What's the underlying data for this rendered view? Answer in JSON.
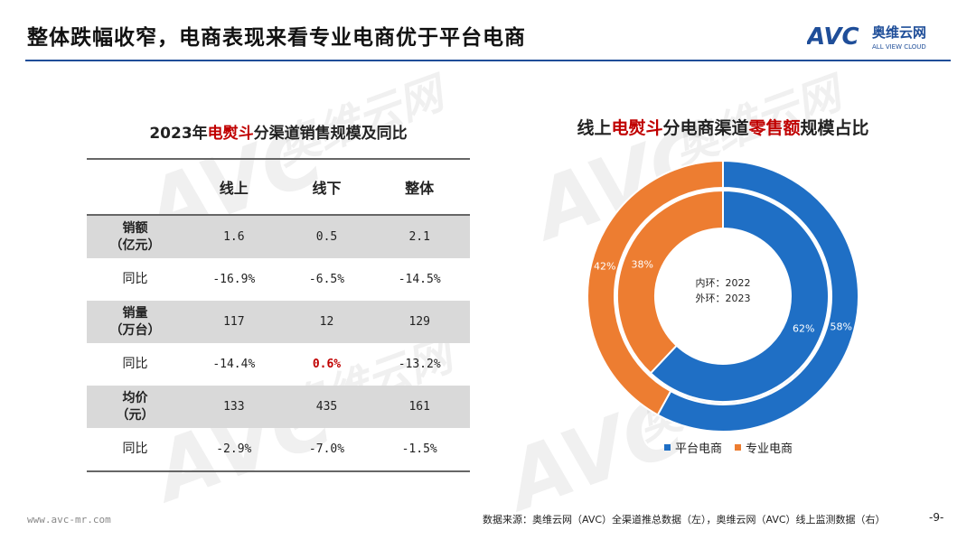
{
  "header": {
    "title": "整体跌幅收窄，电商表现来看专业电商优于平台电商"
  },
  "logo": {
    "mark": "AVC",
    "cn": "奥维云网",
    "en": "ALL VIEW CLOUD"
  },
  "watermark": {
    "mark": "AVC",
    "cn": "奥维云网",
    "en": "ALL VIEW CLOUD"
  },
  "table": {
    "title_prefix": "2023年",
    "title_highlight": "电熨斗",
    "title_suffix": "分渠道销售规模及同比",
    "headers": [
      "",
      "线上",
      "线下",
      "整体"
    ],
    "rows": [
      {
        "label": "销额\n（亿元）",
        "values": [
          "1.6",
          "0.5",
          "2.1"
        ]
      },
      {
        "label": "同比",
        "values": [
          "-16.9%",
          "-6.5%",
          "-14.5%"
        ]
      },
      {
        "label": "销量\n（万台）",
        "values": [
          "117",
          "12",
          "129"
        ]
      },
      {
        "label": "同比",
        "values": [
          "-14.4%",
          "0.6%",
          "-13.2%"
        ]
      },
      {
        "label": "均价\n（元）",
        "values": [
          "133",
          "435",
          "161"
        ]
      },
      {
        "label": "同比",
        "values": [
          "-2.9%",
          "-7.0%",
          "-1.5%"
        ]
      }
    ]
  },
  "chart_title": {
    "p1": "线上",
    "p2": "电熨斗",
    "p3": "分电商渠道",
    "p4": "零售额",
    "p5": "规模占比"
  },
  "center_note": {
    "inner": "内环：2022",
    "outer": "外环：2023"
  },
  "chart_data": {
    "type": "pie",
    "subtype": "donut",
    "categories": [
      "平台电商",
      "专业电商"
    ],
    "colors": [
      "#1f6fc5",
      "#ed7d31"
    ],
    "rings": [
      {
        "name": "2022",
        "position": "inner",
        "values": [
          62,
          38
        ],
        "labels": [
          "62%",
          "38%"
        ]
      },
      {
        "name": "2023",
        "position": "outer",
        "values": [
          58,
          42
        ],
        "labels": [
          "58%",
          "42%"
        ]
      }
    ],
    "legend": [
      "平台电商",
      "专业电商"
    ],
    "legend_position": "bottom"
  },
  "footer": {
    "url": "www.avc-mr.com",
    "source": "数据来源：奥维云网（AVC）全渠道推总数据（左），奥维云网（AVC）线上监测数据（右）",
    "page": "-9-"
  }
}
